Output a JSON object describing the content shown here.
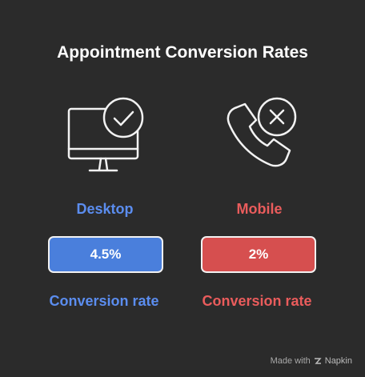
{
  "title": "Appointment Conversion Rates",
  "items": [
    {
      "label": "Desktop",
      "value": "4.5%",
      "caption": "Conversion rate"
    },
    {
      "label": "Mobile",
      "value": "2%",
      "caption": "Conversion rate"
    }
  ],
  "footer": {
    "prefix": "Made with",
    "brand": "Napkin"
  }
}
